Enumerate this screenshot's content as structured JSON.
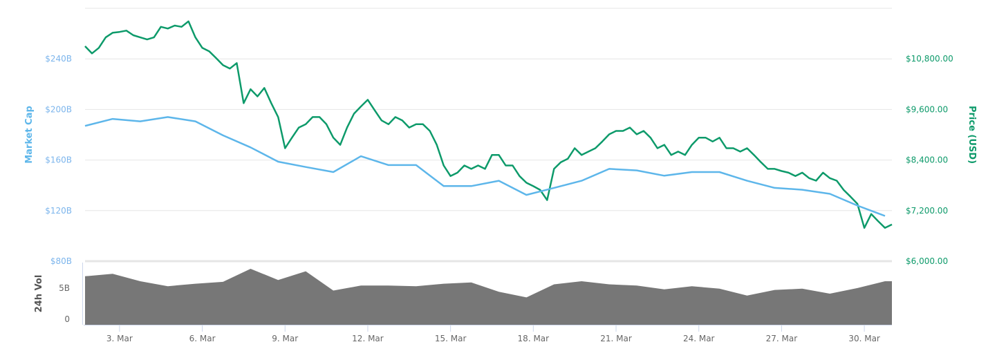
{
  "chart_data": {
    "type": "line",
    "x_start": "Mar 1 18:00",
    "xlim": [
      "Mar 1 18:00",
      "Mar 31 00:00"
    ],
    "x_ticks": [
      "3. Mar",
      "6. Mar",
      "9. Mar",
      "12. Mar",
      "15. Mar",
      "18. Mar",
      "21. Mar",
      "24. Mar",
      "27. Mar",
      "30. Mar"
    ],
    "grid": true,
    "colors": {
      "market_cap": "#5db6ea",
      "price": "#0d9a6a",
      "volume": "#777777",
      "grid": "#e6e6e6",
      "axis": "#ccd6eb"
    },
    "left_axis": {
      "title": "Market Cap",
      "ylim": [
        80,
        280
      ],
      "tick_values": [
        80,
        120,
        160,
        200,
        240
      ],
      "tick_labels": [
        "$80B",
        "$120B",
        "$160B",
        "$200B",
        "$240B"
      ]
    },
    "right_axis": {
      "title": "Price (USD)",
      "ylim": [
        6000,
        12000
      ],
      "tick_values": [
        6000,
        7200,
        8400,
        9600,
        10800
      ],
      "tick_labels": [
        "$6,000.00",
        "$7,200.00",
        "$8,400.00",
        "$9,600.00",
        "$10,800.00"
      ]
    },
    "volume_axis": {
      "title": "24h Vol",
      "ylim": [
        0,
        10
      ],
      "tick_values": [
        0,
        5
      ],
      "tick_labels": [
        "0",
        "5B"
      ]
    },
    "series": [
      {
        "name": "Price (USD)",
        "axis": "right",
        "interval_hours": 6,
        "values": [
          11100,
          10930,
          11060,
          11310,
          11420,
          11440,
          11470,
          11360,
          11310,
          11260,
          11310,
          11560,
          11520,
          11590,
          11560,
          11690,
          11310,
          11060,
          10980,
          10820,
          10650,
          10570,
          10700,
          9750,
          10080,
          9910,
          10110,
          9750,
          9420,
          8680,
          8930,
          9170,
          9250,
          9420,
          9420,
          9250,
          8930,
          8760,
          9170,
          9500,
          9670,
          9830,
          9580,
          9340,
          9250,
          9420,
          9340,
          9170,
          9250,
          9250,
          9090,
          8760,
          8270,
          8020,
          8100,
          8270,
          8190,
          8270,
          8190,
          8520,
          8520,
          8270,
          8270,
          8020,
          7860,
          7780,
          7690,
          7450,
          8190,
          8350,
          8430,
          8680,
          8520,
          8600,
          8680,
          8840,
          9010,
          9090,
          9090,
          9170,
          9010,
          9090,
          8930,
          8680,
          8760,
          8520,
          8600,
          8520,
          8760,
          8930,
          8930,
          8840,
          8930,
          8680,
          8680,
          8600,
          8680,
          8520,
          8350,
          8190,
          8190,
          8140,
          8100,
          8020,
          8100,
          7970,
          7910,
          8100,
          7970,
          7910,
          7690,
          7530,
          7360,
          6790,
          7120,
          6950,
          6790,
          6870
        ]
      },
      {
        "name": "Market Cap",
        "axis": "left",
        "interval_hours": 24,
        "values": [
          187,
          192.5,
          190.6,
          194,
          190.6,
          179.5,
          170,
          158.7,
          154.5,
          150.5,
          163,
          156,
          156,
          139.4,
          139.4,
          143.6,
          132.4,
          138,
          143.6,
          153,
          151.8,
          147.6,
          150.5,
          150.5,
          143.6,
          138,
          136.5,
          133.3,
          124,
          115.8
        ]
      },
      {
        "name": "24h Vol",
        "axis": "volume",
        "interval_hours": 24,
        "values": [
          7.8,
          8.2,
          7,
          6.2,
          6.6,
          6.9,
          9,
          7.2,
          8.6,
          5.5,
          6.3,
          6.3,
          6.2,
          6.6,
          6.8,
          5.3,
          4.4,
          6.5,
          7,
          6.5,
          6.3,
          5.7,
          6.2,
          5.8,
          4.7,
          5.6,
          5.8,
          5,
          5.9,
          7
        ]
      }
    ]
  }
}
